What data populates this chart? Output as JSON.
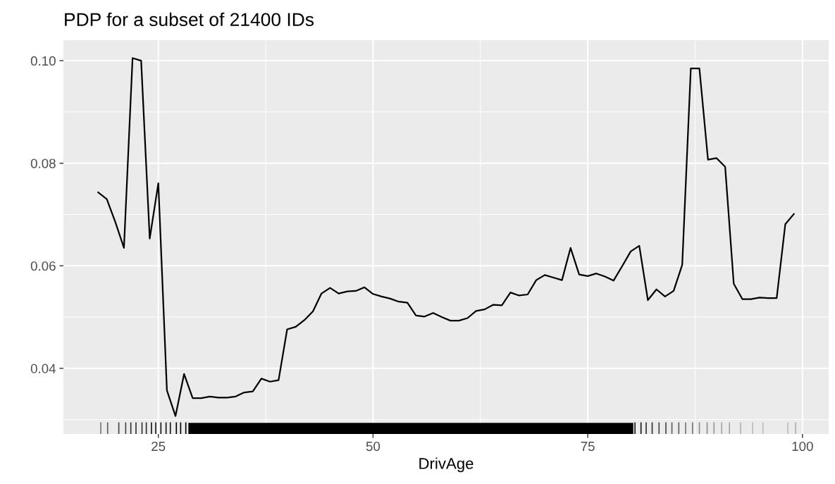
{
  "chart_data": {
    "type": "line",
    "title": "PDP for a subset of 21400 IDs",
    "xlabel": "DrivAge",
    "x": [
      18,
      19,
      20,
      21,
      22,
      23,
      24,
      25,
      26,
      27,
      28,
      29,
      30,
      31,
      32,
      33,
      34,
      35,
      36,
      37,
      38,
      39,
      40,
      41,
      42,
      43,
      44,
      45,
      46,
      47,
      48,
      49,
      50,
      51,
      52,
      53,
      54,
      55,
      56,
      57,
      58,
      59,
      60,
      61,
      62,
      63,
      64,
      65,
      66,
      67,
      68,
      69,
      70,
      71,
      72,
      73,
      74,
      75,
      76,
      77,
      78,
      79,
      80,
      81,
      82,
      83,
      84,
      85,
      86,
      87,
      88,
      89,
      90,
      91,
      92,
      93,
      94,
      95,
      96,
      97,
      98,
      99
    ],
    "series": [
      {
        "color": "#000000",
        "values": [
          0.0743,
          0.073,
          0.0685,
          0.0635,
          0.1005,
          0.1,
          0.0653,
          0.0761,
          0.0357,
          0.0307,
          0.0389,
          0.0342,
          0.0342,
          0.0345,
          0.0343,
          0.0343,
          0.0345,
          0.0353,
          0.0355,
          0.038,
          0.0374,
          0.0377,
          0.0476,
          0.0481,
          0.0494,
          0.0511,
          0.0546,
          0.0557,
          0.0546,
          0.055,
          0.0551,
          0.0558,
          0.0545,
          0.054,
          0.0536,
          0.053,
          0.0528,
          0.0503,
          0.0501,
          0.0508,
          0.05,
          0.0493,
          0.0493,
          0.0498,
          0.0512,
          0.0515,
          0.0524,
          0.0523,
          0.0548,
          0.0542,
          0.0544,
          0.0572,
          0.0582,
          0.0577,
          0.0572,
          0.0635,
          0.0583,
          0.058,
          0.0585,
          0.0579,
          0.0571,
          0.0599,
          0.0628,
          0.0639,
          0.0533,
          0.0554,
          0.054,
          0.0551,
          0.0602,
          0.0985,
          0.0985,
          0.0807,
          0.081,
          0.0793,
          0.0565,
          0.0535,
          0.0535,
          0.0538,
          0.0537,
          0.0537,
          0.0681,
          0.0701
        ]
      }
    ],
    "xlim": [
      13.95,
      103.05
    ],
    "ylim": [
      0.0272,
      0.104
    ],
    "xticks": [
      25,
      50,
      75,
      100
    ],
    "yticks": [
      0.04,
      0.06,
      0.08,
      {
        "value": 0.1,
        "label": "0.10"
      }
    ],
    "grid": true,
    "legend": false,
    "marker": "none",
    "line_style": "solid"
  }
}
